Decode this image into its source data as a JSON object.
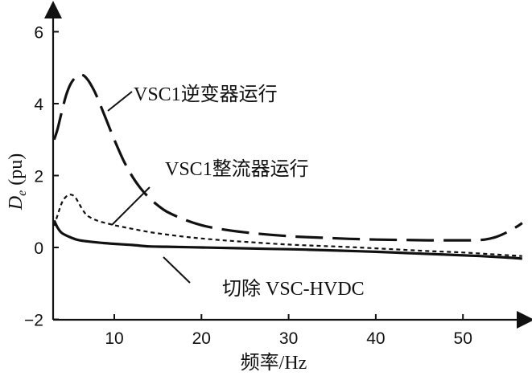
{
  "chart_data": {
    "type": "line",
    "title": "",
    "xlabel": "频率/Hz",
    "ylabel_main": "D",
    "ylabel_sub": "e",
    "ylabel_unit": " (pu)",
    "xlim": [
      3,
      57
    ],
    "ylim": [
      -2,
      6.6
    ],
    "xticks": [
      10,
      20,
      30,
      40,
      50
    ],
    "yticks": [
      -2,
      0,
      2,
      4,
      6
    ],
    "grid": false,
    "legend": "none",
    "series": [
      {
        "name": "VSC1逆变器运行",
        "style": "long-dash",
        "points": [
          [
            3.1,
            3.0
          ],
          [
            3.5,
            3.3
          ],
          [
            4.0,
            3.8
          ],
          [
            4.5,
            4.25
          ],
          [
            5.0,
            4.55
          ],
          [
            5.5,
            4.72
          ],
          [
            6.0,
            4.8
          ],
          [
            6.5,
            4.78
          ],
          [
            7.0,
            4.65
          ],
          [
            7.5,
            4.45
          ],
          [
            8.0,
            4.2
          ],
          [
            9.0,
            3.6
          ],
          [
            10.0,
            3.0
          ],
          [
            11.0,
            2.45
          ],
          [
            12.0,
            2.0
          ],
          [
            13.0,
            1.65
          ],
          [
            14.0,
            1.38
          ],
          [
            15.0,
            1.17
          ],
          [
            16.0,
            1.0
          ],
          [
            18.0,
            0.78
          ],
          [
            20.0,
            0.62
          ],
          [
            22.0,
            0.52
          ],
          [
            25.0,
            0.42
          ],
          [
            28.0,
            0.35
          ],
          [
            31.0,
            0.3
          ],
          [
            34.0,
            0.27
          ],
          [
            37.0,
            0.24
          ],
          [
            40.0,
            0.22
          ],
          [
            43.0,
            0.21
          ],
          [
            46.0,
            0.2
          ],
          [
            49.0,
            0.2
          ],
          [
            51.0,
            0.2
          ],
          [
            52.5,
            0.22
          ],
          [
            53.5,
            0.27
          ],
          [
            54.5,
            0.36
          ],
          [
            55.5,
            0.48
          ],
          [
            56.2,
            0.58
          ],
          [
            56.8,
            0.68
          ]
        ]
      },
      {
        "name": "VSC1整流器运行",
        "style": "short-dash",
        "points": [
          [
            3.1,
            0.6
          ],
          [
            3.5,
            0.9
          ],
          [
            4.0,
            1.25
          ],
          [
            4.5,
            1.42
          ],
          [
            5.0,
            1.47
          ],
          [
            5.5,
            1.4
          ],
          [
            6.0,
            1.2
          ],
          [
            6.5,
            1.0
          ],
          [
            7.0,
            0.87
          ],
          [
            8.0,
            0.75
          ],
          [
            9.0,
            0.68
          ],
          [
            10.0,
            0.62
          ],
          [
            11.0,
            0.57
          ],
          [
            12.0,
            0.52
          ],
          [
            14.0,
            0.43
          ],
          [
            16.0,
            0.36
          ],
          [
            18.0,
            0.3
          ],
          [
            20.0,
            0.25
          ],
          [
            23.0,
            0.19
          ],
          [
            26.0,
            0.14
          ],
          [
            30.0,
            0.08
          ],
          [
            34.0,
            0.04
          ],
          [
            38.0,
            0.0
          ],
          [
            42.0,
            -0.05
          ],
          [
            46.0,
            -0.1
          ],
          [
            50.0,
            -0.14
          ],
          [
            54.0,
            -0.2
          ],
          [
            56.8,
            -0.24
          ]
        ]
      },
      {
        "name": "切除 VSC-HVDC",
        "style": "solid",
        "points": [
          [
            3.1,
            0.75
          ],
          [
            3.5,
            0.55
          ],
          [
            4.0,
            0.4
          ],
          [
            5.0,
            0.28
          ],
          [
            6.0,
            0.2
          ],
          [
            8.0,
            0.14
          ],
          [
            10.0,
            0.1
          ],
          [
            12.0,
            0.07
          ],
          [
            14.0,
            0.03
          ],
          [
            16.0,
            0.02
          ],
          [
            20.0,
            0.0
          ],
          [
            24.0,
            -0.02
          ],
          [
            28.0,
            -0.04
          ],
          [
            32.0,
            -0.06
          ],
          [
            36.0,
            -0.09
          ],
          [
            40.0,
            -0.12
          ],
          [
            44.0,
            -0.16
          ],
          [
            48.0,
            -0.2
          ],
          [
            52.0,
            -0.24
          ],
          [
            55.0,
            -0.28
          ],
          [
            56.8,
            -0.31
          ]
        ]
      }
    ],
    "annotations": [
      {
        "text": "VSC1逆变器运行",
        "series": 0
      },
      {
        "text": "VSC1整流器运行",
        "series": 1
      },
      {
        "text": "切除 VSC-HVDC",
        "series": 2
      }
    ]
  }
}
